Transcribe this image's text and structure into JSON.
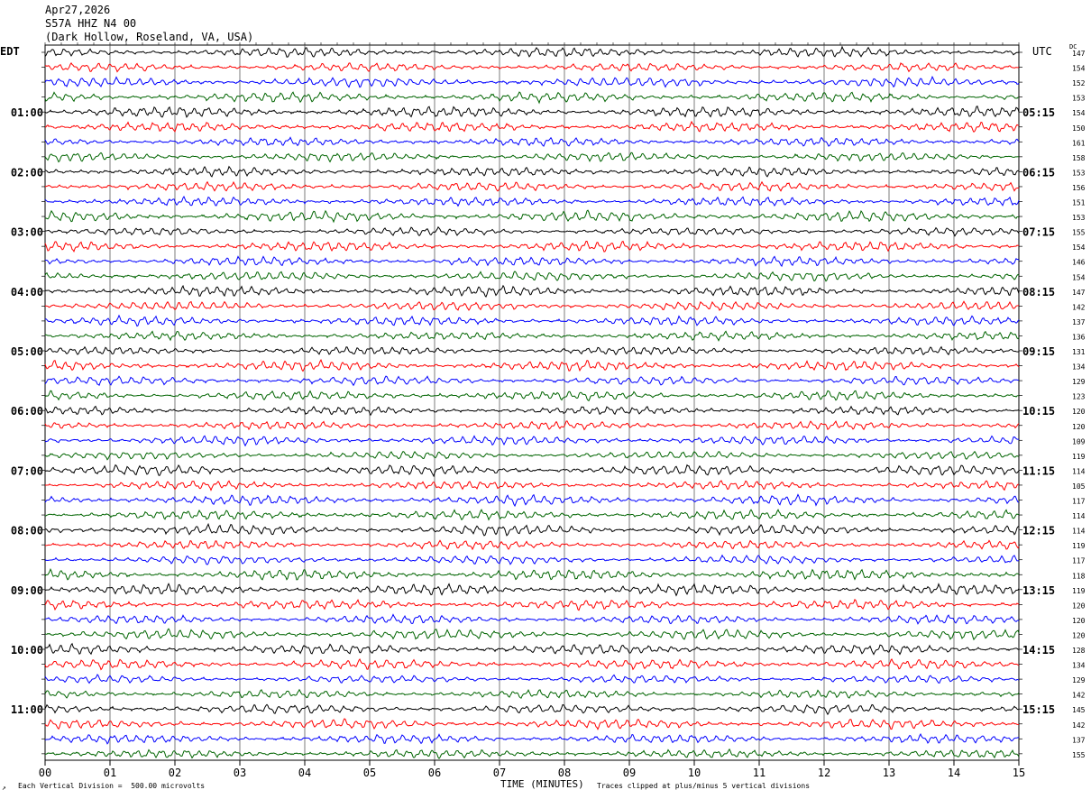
{
  "header": {
    "date": "Apr27,2026",
    "station": "S57A HHZ N4 00",
    "location": "(Dark Hollow, Roseland, VA, USA)"
  },
  "axis_labels": {
    "left_tz": "EDT",
    "right_tz": "UTC",
    "dc_header": "DC",
    "xlabel": "TIME (MINUTES)"
  },
  "footer": {
    "scale_note": "Each Vertical Division =  500.00 microvolts",
    "clip_note": "Traces clipped at plus/minus 5 vertical divisions",
    "corner_mark": "↗"
  },
  "colors": {
    "trace_cycle": [
      "#000000",
      "#ff0000",
      "#0000ff",
      "#006400"
    ],
    "grid": "#000000"
  },
  "chart_data": {
    "type": "line",
    "title": "",
    "xlabel": "TIME (MINUTES)",
    "x_ticks": [
      "00",
      "01",
      "02",
      "03",
      "04",
      "05",
      "06",
      "07",
      "08",
      "09",
      "10",
      "11",
      "12",
      "13",
      "14",
      "15"
    ],
    "xlim": [
      0,
      15
    ],
    "grid": true,
    "rows": 48,
    "left_hour_labels": [
      "01:00",
      "02:00",
      "03:00",
      "04:00",
      "05:00",
      "06:00",
      "07:00",
      "08:00",
      "09:00",
      "10:00",
      "11:00"
    ],
    "right_hour_labels": [
      "05:15",
      "06:15",
      "07:15",
      "08:15",
      "09:15",
      "10:15",
      "11:15",
      "12:15",
      "13:15",
      "14:15",
      "15:15"
    ],
    "dc_offsets": [
      147,
      154,
      152,
      153,
      154,
      150,
      161,
      158,
      153,
      156,
      151,
      153,
      155,
      154,
      146,
      154,
      147,
      142,
      137,
      136,
      131,
      134,
      129,
      123,
      120,
      120,
      109,
      119,
      114,
      105,
      117,
      114,
      114,
      119,
      117,
      118,
      119,
      120,
      120,
      120,
      128,
      134,
      129,
      142,
      145,
      142,
      137,
      155
    ]
  }
}
